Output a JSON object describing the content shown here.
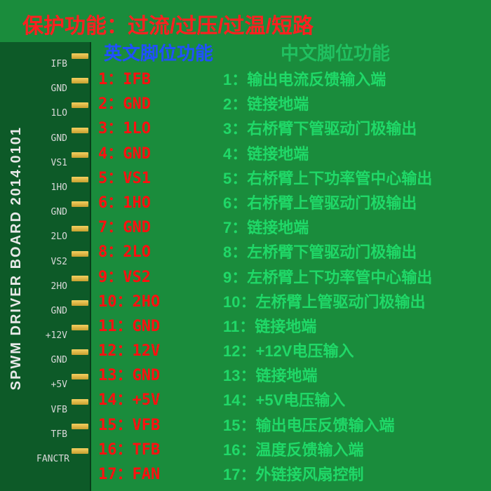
{
  "colors": {
    "background": "#1a8c3c",
    "pcb": "#0d5a28",
    "header_text": "#ff2020",
    "eng_title": "#2050ff",
    "chn_title": "#20c060",
    "eng_list": "#ff1010",
    "chn_list": "#20d868",
    "pin": "#f5d060"
  },
  "header": "保护功能：过流/过压/过温/短路",
  "pcb_text": "SPWM DRIVER BOARD 2014.0101",
  "eng_title": "英文脚位功能",
  "chn_title": "中文脚位功能",
  "pin_silk": [
    "IFB",
    "GND",
    "1LO",
    "GND",
    "VS1",
    "1HO",
    "GND",
    "2LO",
    "VS2",
    "2HO",
    "GND",
    "+12V",
    "GND",
    "+5V",
    "VFB",
    "TFB",
    "FANCTR"
  ],
  "eng": [
    {
      "n": "1",
      "label": "IFB"
    },
    {
      "n": "2",
      "label": "GND"
    },
    {
      "n": "3",
      "label": "1LO"
    },
    {
      "n": "4",
      "label": "GND"
    },
    {
      "n": "5",
      "label": "VS1"
    },
    {
      "n": "6",
      "label": "1HO"
    },
    {
      "n": "7",
      "label": "GND"
    },
    {
      "n": "8",
      "label": "2LO"
    },
    {
      "n": "9",
      "label": "VS2"
    },
    {
      "n": "10",
      "label": "2HO"
    },
    {
      "n": "11",
      "label": "GND"
    },
    {
      "n": "12",
      "label": "12V"
    },
    {
      "n": "13",
      "label": "GND"
    },
    {
      "n": "14",
      "label": "+5V"
    },
    {
      "n": "15",
      "label": "VFB"
    },
    {
      "n": "16",
      "label": "TFB"
    },
    {
      "n": "17",
      "label": "FAN"
    }
  ],
  "chn": [
    {
      "n": "1",
      "label": "输出电流反馈输入端"
    },
    {
      "n": "2",
      "label": "链接地端"
    },
    {
      "n": "3",
      "label": "右桥臂下管驱动门极输出"
    },
    {
      "n": "4",
      "label": "链接地端"
    },
    {
      "n": "5",
      "label": "右桥臂上下功率管中心输出"
    },
    {
      "n": "6",
      "label": "右桥臂上管驱动门极输出"
    },
    {
      "n": "7",
      "label": "链接地端"
    },
    {
      "n": "8",
      "label": "左桥臂下管驱动门极输出"
    },
    {
      "n": "9",
      "label": "左桥臂上下功率管中心输出"
    },
    {
      "n": "10",
      "label": "左桥臂上管驱动门极输出"
    },
    {
      "n": "11",
      "label": "链接地端"
    },
    {
      "n": "12",
      "label": "+12V电压输入"
    },
    {
      "n": "13",
      "label": "链接地端"
    },
    {
      "n": "14",
      "label": "+5V电压输入"
    },
    {
      "n": "15",
      "label": "输出电压反馈输入端"
    },
    {
      "n": "16",
      "label": "温度反馈输入端"
    },
    {
      "n": "17",
      "label": "外链接风扇控制"
    }
  ]
}
